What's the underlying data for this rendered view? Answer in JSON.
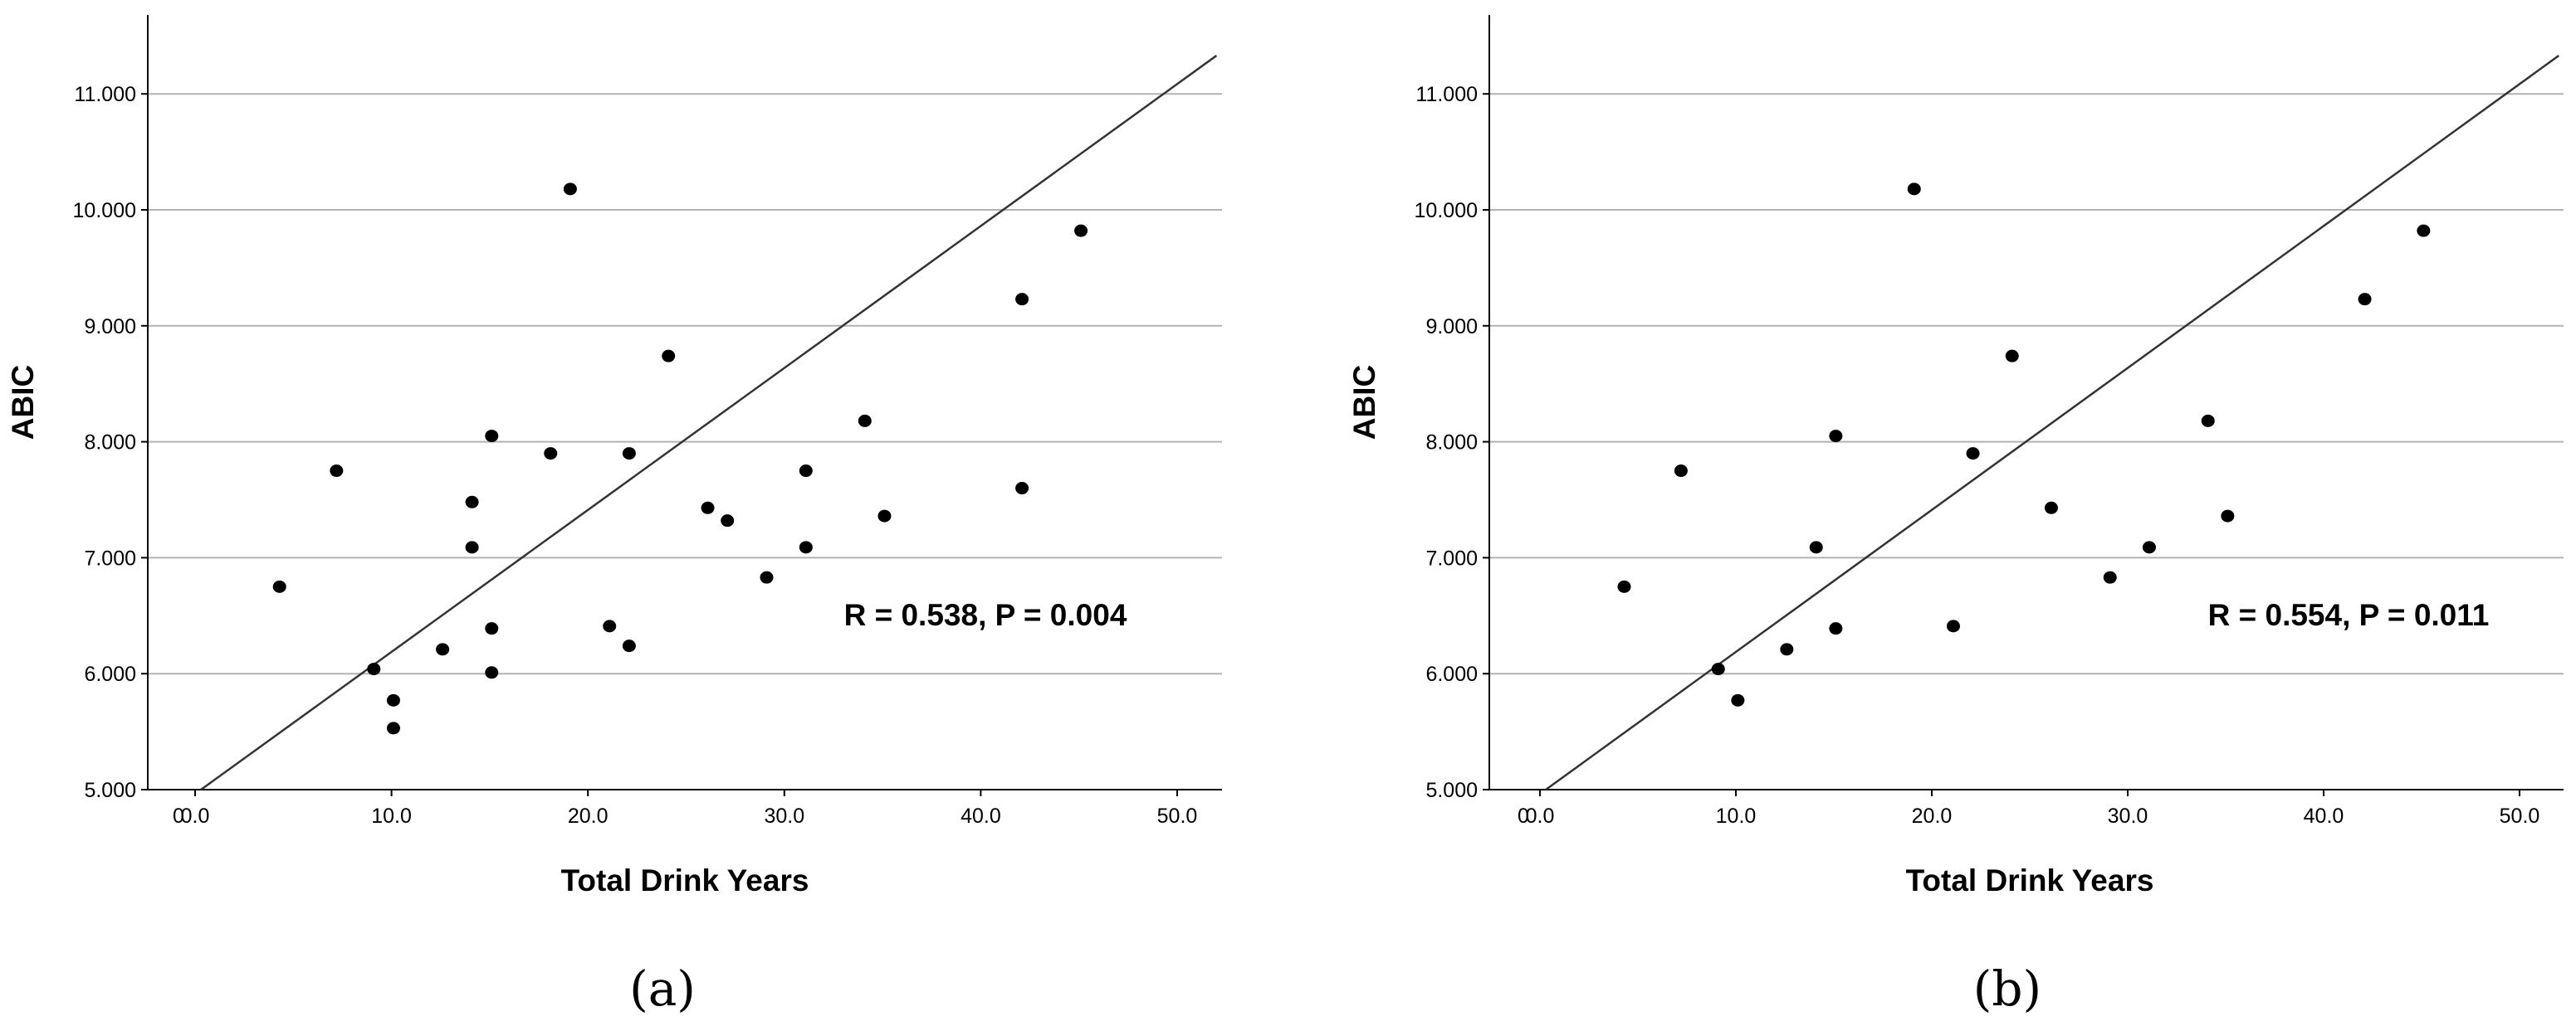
{
  "chart_data": [
    {
      "type": "scatter",
      "panel_label": "(a)",
      "xlabel": "Total Drink Years",
      "ylabel": "ABIC",
      "xlim": [
        -2,
        52
      ],
      "ylim": [
        5.0,
        11.67
      ],
      "x_ticks": [
        "0",
        "0.0",
        "10.0",
        "20.0",
        "30.0",
        "40.0",
        "50.0"
      ],
      "y_ticks": [
        "5.000",
        "6.000",
        "7.000",
        "8.000",
        "9.000",
        "10.000",
        "11.000"
      ],
      "grid": "horizontal",
      "annotation": "R = 0.538, P = 0.004",
      "fit_line": {
        "x": [
          0.3,
          52.0
        ],
        "y": [
          5.0,
          11.33
        ]
      },
      "points": [
        {
          "x": 4.3,
          "y": 6.75
        },
        {
          "x": 7.2,
          "y": 7.75
        },
        {
          "x": 9.1,
          "y": 6.04
        },
        {
          "x": 10.1,
          "y": 5.77
        },
        {
          "x": 10.1,
          "y": 5.53
        },
        {
          "x": 12.6,
          "y": 6.21
        },
        {
          "x": 14.1,
          "y": 7.48
        },
        {
          "x": 14.1,
          "y": 7.09
        },
        {
          "x": 15.1,
          "y": 8.05
        },
        {
          "x": 15.1,
          "y": 6.39
        },
        {
          "x": 15.1,
          "y": 6.01
        },
        {
          "x": 18.1,
          "y": 7.9
        },
        {
          "x": 19.1,
          "y": 10.18
        },
        {
          "x": 21.1,
          "y": 6.41
        },
        {
          "x": 22.1,
          "y": 7.9
        },
        {
          "x": 22.1,
          "y": 6.24
        },
        {
          "x": 24.1,
          "y": 8.74
        },
        {
          "x": 26.1,
          "y": 7.43
        },
        {
          "x": 27.1,
          "y": 7.32
        },
        {
          "x": 29.1,
          "y": 6.83
        },
        {
          "x": 31.1,
          "y": 7.75
        },
        {
          "x": 31.1,
          "y": 7.09
        },
        {
          "x": 34.1,
          "y": 8.18
        },
        {
          "x": 35.1,
          "y": 7.36
        },
        {
          "x": 42.1,
          "y": 9.23
        },
        {
          "x": 42.1,
          "y": 7.6
        },
        {
          "x": 45.1,
          "y": 9.82
        }
      ]
    },
    {
      "type": "scatter",
      "panel_label": "(b)",
      "xlabel": "Total Drink Years",
      "ylabel": "ABIC",
      "xlim": [
        -2,
        52
      ],
      "ylim": [
        5.0,
        11.67
      ],
      "x_ticks": [
        "0",
        "0.0",
        "10.0",
        "20.0",
        "30.0",
        "40.0",
        "50.0"
      ],
      "y_ticks": [
        "5.000",
        "6.000",
        "7.000",
        "8.000",
        "9.000",
        "10.000",
        "11.000"
      ],
      "grid": "horizontal",
      "annotation": "R = 0.554, P = 0.011",
      "fit_line": {
        "x": [
          0.3,
          52.0
        ],
        "y": [
          5.0,
          11.33
        ]
      },
      "points": [
        {
          "x": 4.3,
          "y": 6.75
        },
        {
          "x": 7.2,
          "y": 7.75
        },
        {
          "x": 9.1,
          "y": 6.04
        },
        {
          "x": 10.1,
          "y": 5.77
        },
        {
          "x": 12.6,
          "y": 6.21
        },
        {
          "x": 14.1,
          "y": 7.09
        },
        {
          "x": 15.1,
          "y": 8.05
        },
        {
          "x": 15.1,
          "y": 6.39
        },
        {
          "x": 19.1,
          "y": 10.18
        },
        {
          "x": 21.1,
          "y": 6.41
        },
        {
          "x": 22.1,
          "y": 7.9
        },
        {
          "x": 24.1,
          "y": 8.74
        },
        {
          "x": 26.1,
          "y": 7.43
        },
        {
          "x": 29.1,
          "y": 6.83
        },
        {
          "x": 31.1,
          "y": 7.09
        },
        {
          "x": 34.1,
          "y": 8.18
        },
        {
          "x": 35.1,
          "y": 7.36
        },
        {
          "x": 42.1,
          "y": 9.23
        },
        {
          "x": 45.1,
          "y": 9.82
        }
      ]
    }
  ]
}
